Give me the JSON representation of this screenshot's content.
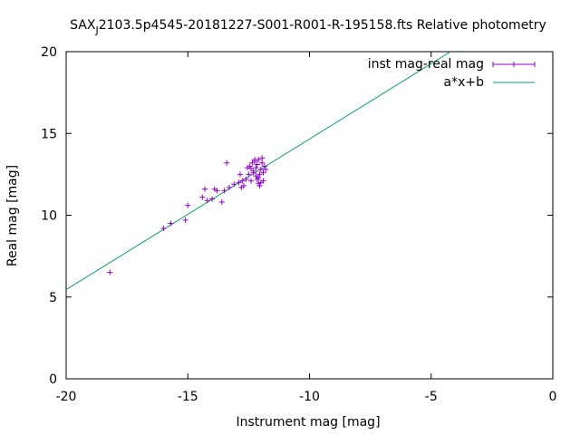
{
  "chart_data": {
    "type": "scatter",
    "title_prefix": "SAX",
    "title_sub": "J",
    "title_rest": "2103.5p4545-20181227-S001-R001-R-195158.fts Relative photometry",
    "xlabel": "Instrument mag [mag]",
    "ylabel": "Real mag [mag]",
    "xlim": [
      -20,
      0
    ],
    "ylim": [
      0,
      20
    ],
    "x_ticks": [
      -20,
      -15,
      -10,
      -5,
      0
    ],
    "y_ticks": [
      0,
      5,
      10,
      15,
      20
    ],
    "x_tick_labels": [
      "-20",
      "-15",
      "-10",
      "-5",
      "0"
    ],
    "y_tick_labels": [
      "0",
      "5",
      "10",
      "15",
      "20"
    ],
    "grid": false,
    "legend_position": "top-right",
    "series": [
      {
        "name": "inst mag-real mag",
        "kind": "points",
        "color": "#9400d3",
        "marker": "plus",
        "x": [
          -18.2,
          -16.0,
          -15.7,
          -15.1,
          -15.0,
          -14.4,
          -14.3,
          -14.2,
          -14.0,
          -13.9,
          -13.8,
          -13.6,
          -13.5,
          -13.4,
          -13.3,
          -13.1,
          -12.9,
          -12.85,
          -12.8,
          -12.75,
          -12.7,
          -12.6,
          -12.55,
          -12.5,
          -12.45,
          -12.4,
          -12.35,
          -12.3,
          -12.25,
          -12.2,
          -12.2,
          -12.15,
          -12.1,
          -12.1,
          -12.05,
          -12.0,
          -12.0,
          -11.95,
          -11.9,
          -11.9,
          -11.85,
          -11.8,
          -12.3,
          -12.15,
          -12.05,
          -11.95,
          -12.4,
          -12.25,
          -12.1
        ],
        "y": [
          6.5,
          9.2,
          9.5,
          9.7,
          10.6,
          11.1,
          11.6,
          10.9,
          11.0,
          11.6,
          11.5,
          10.8,
          11.5,
          13.2,
          11.7,
          11.9,
          12.0,
          12.5,
          11.7,
          12.1,
          11.8,
          12.2,
          12.9,
          12.5,
          13.0,
          12.1,
          13.2,
          12.7,
          13.3,
          12.9,
          12.4,
          13.1,
          12.3,
          13.4,
          11.8,
          12.8,
          12.0,
          13.5,
          12.6,
          12.1,
          13.0,
          12.8,
          12.6,
          12.2,
          12.5,
          13.2,
          12.85,
          13.4,
          11.95
        ]
      },
      {
        "name": "a*x+b",
        "kind": "line",
        "color": "#009e73",
        "x": [
          -20,
          -4.2
        ],
        "y": [
          5.45,
          20.0
        ]
      }
    ]
  }
}
